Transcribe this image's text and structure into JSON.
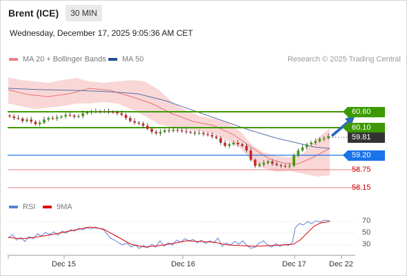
{
  "header": {
    "instrument": "Brent (ICE)",
    "timeframe": "30 MIN"
  },
  "datetime": "Wednesday, December 17, 2025 9:05:36 AM CET",
  "legend": {
    "bollinger_label": "MA 20 + Bollinger Bands",
    "ma50_label": "MA 50",
    "credit": "Research © 2025 Trading Central",
    "colors": {
      "bollinger": "#f08080",
      "ma50": "#1f4e9c"
    }
  },
  "levels": [
    {
      "label": "60.60",
      "style": "green",
      "color": "#3c9a00"
    },
    {
      "label": "60.10",
      "style": "green",
      "color": "#3c9a00"
    },
    {
      "label": "59.81",
      "style": "dark",
      "color": "#333333"
    },
    {
      "label": "59.20",
      "style": "blue",
      "color": "#1a73e8"
    },
    {
      "label": "58.75",
      "style": "redtext",
      "color": "#e05050"
    },
    {
      "label": "58.15",
      "style": "redtext",
      "color": "#e05050"
    }
  ],
  "rsi_panel": {
    "rsi_label": "RSI",
    "ma_label": "9MA",
    "colors": {
      "rsi": "#5b7fd6",
      "ma": "#dd0000"
    },
    "ticks": [
      "70",
      "50",
      "30"
    ]
  },
  "x_axis": [
    "Dec 15",
    "Dec 16",
    "Dec 17",
    "Dec 22"
  ],
  "chart_data": {
    "type": "candlestick",
    "price_levels": [
      60.6,
      60.1,
      59.81,
      59.2,
      58.75,
      58.15
    ],
    "last_price": 59.81,
    "x_ticks": [
      "Dec 15",
      "Dec 16",
      "Dec 17",
      "Dec 22"
    ],
    "rsi_ticks": [
      70,
      50,
      30
    ],
    "rsi_latest": 70,
    "closes": [
      60.45,
      60.4,
      60.38,
      60.3,
      60.35,
      60.28,
      60.2,
      60.25,
      60.35,
      60.4,
      60.38,
      60.42,
      60.45,
      60.5,
      60.48,
      60.44,
      60.46,
      60.55,
      60.58,
      60.6,
      60.62,
      60.61,
      60.62,
      60.6,
      60.58,
      60.55,
      60.5,
      60.4,
      60.3,
      60.25,
      60.22,
      60.15,
      60.05,
      59.95,
      59.9,
      59.95,
      60.0,
      59.98,
      60.02,
      60.0,
      59.97,
      59.95,
      59.93,
      59.9,
      59.92,
      59.88,
      59.85,
      59.8,
      59.75,
      59.6,
      59.5,
      59.55,
      59.6,
      59.55,
      59.5,
      59.35,
      59.05,
      58.85,
      58.9,
      58.95,
      59.0,
      58.92,
      58.88,
      58.85,
      58.84,
      58.86,
      59.2,
      59.35,
      59.45,
      59.55,
      59.6,
      59.65,
      59.72,
      59.75,
      59.81
    ]
  }
}
